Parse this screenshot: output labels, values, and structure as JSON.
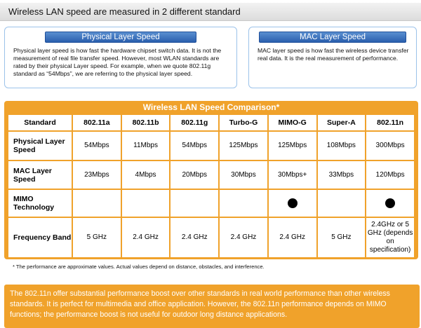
{
  "banner": {
    "text": "Wireless LAN speed are measured in 2 different standard"
  },
  "physical": {
    "title": "Physical Layer Speed",
    "body": "Physical layer speed is how fast the hardware chipset switch data.  It is not the measurement of real file transfer speed.  However, most WLAN standards are rated by their physical Layer speed.  For example, when we quote 802.11g standard as “54Mbps”, we are referring to the physical layer speed."
  },
  "mac": {
    "title": "MAC Layer Speed",
    "body": "MAC layer speed is how fast the wireless device transfer real data.  It is the real measurement of performance."
  },
  "table": {
    "title": "Wireless LAN Speed Comparison*",
    "headers": [
      "Standard",
      "802.11a",
      "802.11b",
      "802.11g",
      "Turbo-G",
      "MIMO-G",
      "Super-A",
      "802.11n"
    ],
    "rows": [
      {
        "label": "Physical Layer Speed",
        "cells": [
          "54Mbps",
          "11Mbps",
          "54Mbps",
          "125Mbps",
          "125Mbps",
          "108Mbps",
          "300Mbps"
        ]
      },
      {
        "label": "MAC Layer Speed",
        "cells": [
          "23Mbps",
          "4Mbps",
          "20Mbps",
          "30Mbps",
          "30Mbps+",
          "33Mbps",
          "120Mbps"
        ]
      },
      {
        "label": "MIMO Technology",
        "cells": [
          "",
          "",
          "",
          "",
          "",
          "",
          ""
        ],
        "dots": [
          false,
          false,
          false,
          false,
          true,
          false,
          true
        ]
      },
      {
        "label": "Frequency Band",
        "cells": [
          "5 GHz",
          "2.4 GHz",
          "2.4 GHz",
          "2.4 GHz",
          "2.4 GHz",
          "5 GHz",
          "2.4GHz or 5 GHz (depends on specification)"
        ]
      }
    ]
  },
  "footnote": "* The performance are approximate values.  Actual values depend on distance, obstacles, and interference.",
  "summary": "The 802.11n offer substantial performance boost over other standards in real world performance than other wireless standards.  It is perfect for multimedia and office application.  However, the 802.11n performance depends on MIMO functions; the performance boost is not useful for outdoor long distance applications.",
  "colors": {
    "accent": "#f0a22b",
    "title_blue": "#2a5fae",
    "box_border": "#9cc3ea"
  }
}
